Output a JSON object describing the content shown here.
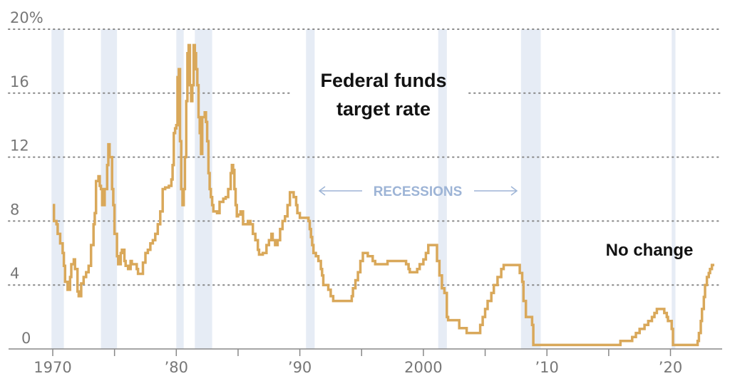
{
  "chart_data": {
    "type": "line",
    "title": "Federal funds target rate",
    "xlabel": "",
    "ylabel": "",
    "ylim": [
      0,
      20
    ],
    "xlim": [
      1970,
      2024
    ],
    "grid": true,
    "y_ticks": [
      {
        "value": 0,
        "label": "0"
      },
      {
        "value": 4,
        "label": "4"
      },
      {
        "value": 8,
        "label": "8"
      },
      {
        "value": 12,
        "label": "12"
      },
      {
        "value": 16,
        "label": "16"
      },
      {
        "value": 20,
        "label": "20%"
      }
    ],
    "x_ticks": [
      {
        "value": 1970,
        "label": "1970"
      },
      {
        "value": 1975,
        "label": ""
      },
      {
        "value": 1980,
        "label": "’80"
      },
      {
        "value": 1985,
        "label": ""
      },
      {
        "value": 1990,
        "label": "’90"
      },
      {
        "value": 1995,
        "label": ""
      },
      {
        "value": 2000,
        "label": "2000"
      },
      {
        "value": 2005,
        "label": ""
      },
      {
        "value": 2010,
        "label": "’10"
      },
      {
        "value": 2015,
        "label": ""
      },
      {
        "value": 2020,
        "label": "’20"
      }
    ],
    "annotations": [
      {
        "text": "No change",
        "x": 2015.9,
        "y": 6.2
      },
      {
        "text": "RECESSIONS",
        "x": 1995.5,
        "y": 9.9
      }
    ],
    "recessions": [
      {
        "start": 1969.9,
        "end": 1970.9
      },
      {
        "start": 1973.9,
        "end": 1975.2
      },
      {
        "start": 1980.0,
        "end": 1980.6
      },
      {
        "start": 1981.5,
        "end": 1982.9
      },
      {
        "start": 1990.5,
        "end": 1991.2
      },
      {
        "start": 2001.2,
        "end": 2001.9
      },
      {
        "start": 2007.9,
        "end": 2009.5
      },
      {
        "start": 2020.1,
        "end": 2020.4
      }
    ],
    "series": [
      {
        "name": "Federal funds target rate",
        "color": "#d9a85a",
        "points": [
          [
            1970.0,
            9.0
          ],
          [
            1970.1,
            8.0
          ],
          [
            1970.3,
            7.8
          ],
          [
            1970.4,
            7.2
          ],
          [
            1970.6,
            6.6
          ],
          [
            1970.8,
            6.0
          ],
          [
            1970.9,
            5.2
          ],
          [
            1971.0,
            4.2
          ],
          [
            1971.2,
            3.7
          ],
          [
            1971.4,
            4.5
          ],
          [
            1971.5,
            5.3
          ],
          [
            1971.7,
            5.6
          ],
          [
            1971.8,
            5.0
          ],
          [
            1972.0,
            3.6
          ],
          [
            1972.1,
            3.3
          ],
          [
            1972.3,
            4.1
          ],
          [
            1972.5,
            4.5
          ],
          [
            1972.7,
            4.8
          ],
          [
            1972.9,
            5.2
          ],
          [
            1973.1,
            6.5
          ],
          [
            1973.3,
            7.8
          ],
          [
            1973.4,
            8.5
          ],
          [
            1973.5,
            10.5
          ],
          [
            1973.7,
            10.8
          ],
          [
            1973.8,
            10.2
          ],
          [
            1973.9,
            10.0
          ],
          [
            1974.0,
            9.0
          ],
          [
            1974.2,
            10.0
          ],
          [
            1974.4,
            11.5
          ],
          [
            1974.5,
            12.8
          ],
          [
            1974.6,
            12.0
          ],
          [
            1974.8,
            10.0
          ],
          [
            1974.9,
            9.0
          ],
          [
            1975.0,
            7.2
          ],
          [
            1975.2,
            5.8
          ],
          [
            1975.3,
            5.3
          ],
          [
            1975.5,
            6.0
          ],
          [
            1975.6,
            6.2
          ],
          [
            1975.8,
            5.5
          ],
          [
            1975.9,
            5.2
          ],
          [
            1976.1,
            5.0
          ],
          [
            1976.3,
            5.5
          ],
          [
            1976.4,
            5.3
          ],
          [
            1976.6,
            5.3
          ],
          [
            1976.8,
            5.0
          ],
          [
            1976.9,
            4.7
          ],
          [
            1977.1,
            4.7
          ],
          [
            1977.3,
            5.4
          ],
          [
            1977.5,
            6.0
          ],
          [
            1977.7,
            6.2
          ],
          [
            1977.9,
            6.6
          ],
          [
            1978.1,
            6.8
          ],
          [
            1978.3,
            7.2
          ],
          [
            1978.5,
            7.8
          ],
          [
            1978.7,
            8.6
          ],
          [
            1978.9,
            10.0
          ],
          [
            1979.1,
            10.1
          ],
          [
            1979.4,
            10.2
          ],
          [
            1979.6,
            10.6
          ],
          [
            1979.7,
            11.5
          ],
          [
            1979.8,
            13.5
          ],
          [
            1979.9,
            13.8
          ],
          [
            1980.0,
            14.0
          ],
          [
            1980.1,
            17.0
          ],
          [
            1980.2,
            17.5
          ],
          [
            1980.3,
            13.0
          ],
          [
            1980.4,
            10.0
          ],
          [
            1980.5,
            9.0
          ],
          [
            1980.6,
            10.0
          ],
          [
            1980.7,
            12.0
          ],
          [
            1980.8,
            15.5
          ],
          [
            1980.9,
            18.5
          ],
          [
            1981.0,
            19.0
          ],
          [
            1981.1,
            16.5
          ],
          [
            1981.2,
            15.5
          ],
          [
            1981.3,
            16.5
          ],
          [
            1981.4,
            19.0
          ],
          [
            1981.5,
            18.5
          ],
          [
            1981.6,
            17.5
          ],
          [
            1981.7,
            16.5
          ],
          [
            1981.8,
            14.5
          ],
          [
            1981.9,
            13.5
          ],
          [
            1982.0,
            12.2
          ],
          [
            1982.1,
            14.5
          ],
          [
            1982.3,
            14.8
          ],
          [
            1982.4,
            14.2
          ],
          [
            1982.5,
            13.0
          ],
          [
            1982.6,
            11.0
          ],
          [
            1982.7,
            10.0
          ],
          [
            1982.8,
            9.5
          ],
          [
            1982.9,
            9.0
          ],
          [
            1983.0,
            8.6
          ],
          [
            1983.3,
            8.5
          ],
          [
            1983.5,
            9.2
          ],
          [
            1983.8,
            9.4
          ],
          [
            1984.0,
            9.5
          ],
          [
            1984.2,
            10.0
          ],
          [
            1984.4,
            11.0
          ],
          [
            1984.5,
            11.5
          ],
          [
            1984.6,
            11.2
          ],
          [
            1984.7,
            10.0
          ],
          [
            1984.8,
            9.0
          ],
          [
            1984.9,
            8.3
          ],
          [
            1985.0,
            8.4
          ],
          [
            1985.2,
            8.6
          ],
          [
            1985.4,
            7.8
          ],
          [
            1985.6,
            7.8
          ],
          [
            1985.8,
            8.0
          ],
          [
            1986.0,
            7.8
          ],
          [
            1986.2,
            7.2
          ],
          [
            1986.4,
            6.8
          ],
          [
            1986.6,
            6.2
          ],
          [
            1986.7,
            5.9
          ],
          [
            1987.0,
            6.0
          ],
          [
            1987.3,
            6.5
          ],
          [
            1987.5,
            6.8
          ],
          [
            1987.7,
            7.2
          ],
          [
            1987.8,
            6.8
          ],
          [
            1987.9,
            6.8
          ],
          [
            1988.0,
            6.5
          ],
          [
            1988.2,
            6.8
          ],
          [
            1988.4,
            7.5
          ],
          [
            1988.6,
            8.0
          ],
          [
            1988.8,
            8.3
          ],
          [
            1989.0,
            9.0
          ],
          [
            1989.2,
            9.8
          ],
          [
            1989.4,
            9.8
          ],
          [
            1989.5,
            9.5
          ],
          [
            1989.7,
            9.0
          ],
          [
            1989.8,
            8.5
          ],
          [
            1990.0,
            8.2
          ],
          [
            1990.5,
            8.2
          ],
          [
            1990.7,
            8.0
          ],
          [
            1990.8,
            7.5
          ],
          [
            1990.9,
            7.0
          ],
          [
            1991.0,
            6.5
          ],
          [
            1991.1,
            6.0
          ],
          [
            1991.3,
            5.8
          ],
          [
            1991.5,
            5.5
          ],
          [
            1991.7,
            5.0
          ],
          [
            1991.8,
            4.6
          ],
          [
            1991.9,
            4.0
          ],
          [
            1992.1,
            4.0
          ],
          [
            1992.3,
            3.7
          ],
          [
            1992.5,
            3.3
          ],
          [
            1992.7,
            3.0
          ],
          [
            1993.0,
            3.0
          ],
          [
            1994.0,
            3.0
          ],
          [
            1994.2,
            3.3
          ],
          [
            1994.3,
            3.8
          ],
          [
            1994.5,
            4.3
          ],
          [
            1994.7,
            4.8
          ],
          [
            1994.9,
            5.5
          ],
          [
            1995.1,
            6.0
          ],
          [
            1995.5,
            5.8
          ],
          [
            1995.9,
            5.5
          ],
          [
            1996.1,
            5.3
          ],
          [
            1997.1,
            5.5
          ],
          [
            1998.6,
            5.3
          ],
          [
            1998.8,
            5.0
          ],
          [
            1998.9,
            4.8
          ],
          [
            1999.4,
            4.8
          ],
          [
            1999.5,
            5.0
          ],
          [
            1999.7,
            5.3
          ],
          [
            2000.0,
            5.6
          ],
          [
            2000.2,
            6.0
          ],
          [
            2000.4,
            6.5
          ],
          [
            2001.0,
            6.5
          ],
          [
            2001.1,
            5.5
          ],
          [
            2001.3,
            4.6
          ],
          [
            2001.5,
            3.8
          ],
          [
            2001.7,
            3.5
          ],
          [
            2001.9,
            2.0
          ],
          [
            2002.0,
            1.8
          ],
          [
            2002.9,
            1.3
          ],
          [
            2003.5,
            1.0
          ],
          [
            2004.4,
            1.0
          ],
          [
            2004.6,
            1.5
          ],
          [
            2004.8,
            2.0
          ],
          [
            2005.0,
            2.5
          ],
          [
            2005.2,
            3.0
          ],
          [
            2005.5,
            3.5
          ],
          [
            2005.7,
            4.0
          ],
          [
            2006.0,
            4.5
          ],
          [
            2006.3,
            5.0
          ],
          [
            2006.5,
            5.25
          ],
          [
            2007.6,
            5.25
          ],
          [
            2007.8,
            4.75
          ],
          [
            2008.0,
            4.2
          ],
          [
            2008.1,
            3.0
          ],
          [
            2008.3,
            2.0
          ],
          [
            2008.8,
            1.5
          ],
          [
            2008.9,
            0.25
          ],
          [
            2015.9,
            0.25
          ],
          [
            2015.95,
            0.5
          ],
          [
            2016.9,
            0.75
          ],
          [
            2017.2,
            1.0
          ],
          [
            2017.5,
            1.25
          ],
          [
            2017.9,
            1.5
          ],
          [
            2018.2,
            1.75
          ],
          [
            2018.5,
            2.0
          ],
          [
            2018.7,
            2.25
          ],
          [
            2018.9,
            2.5
          ],
          [
            2019.5,
            2.25
          ],
          [
            2019.7,
            2.0
          ],
          [
            2019.8,
            1.75
          ],
          [
            2020.1,
            1.25
          ],
          [
            2020.2,
            0.25
          ],
          [
            2022.2,
            0.5
          ],
          [
            2022.3,
            1.0
          ],
          [
            2022.45,
            1.75
          ],
          [
            2022.55,
            2.5
          ],
          [
            2022.7,
            3.25
          ],
          [
            2022.8,
            4.0
          ],
          [
            2022.95,
            4.5
          ],
          [
            2023.1,
            4.75
          ],
          [
            2023.2,
            5.0
          ],
          [
            2023.35,
            5.25
          ],
          [
            2023.55,
            5.25
          ]
        ]
      }
    ]
  }
}
